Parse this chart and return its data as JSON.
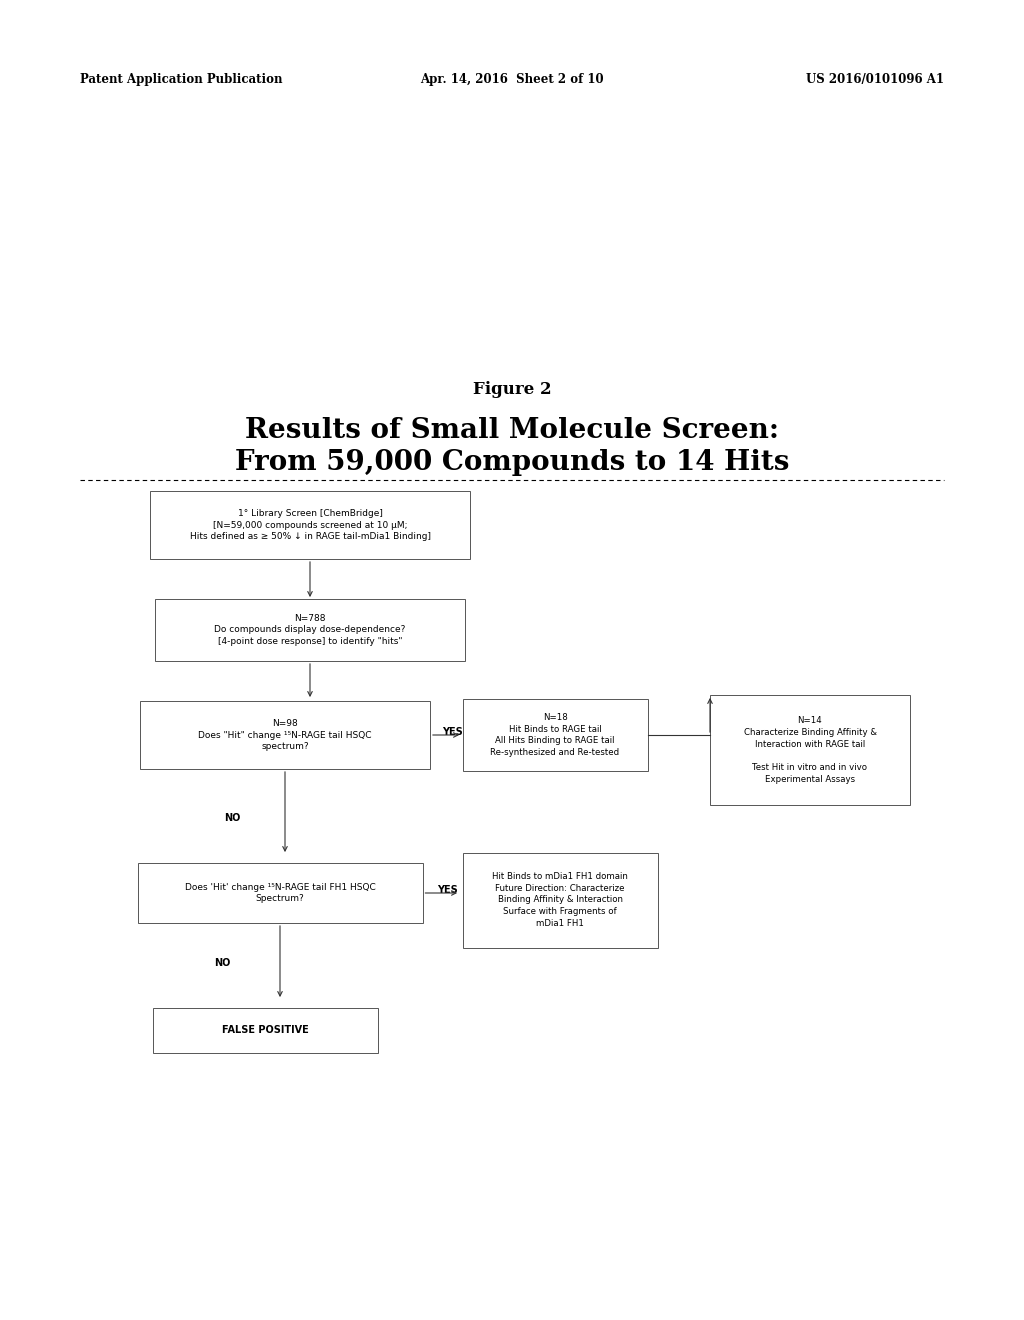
{
  "background_color": "#ffffff",
  "header_left": "Patent Application Publication",
  "header_center": "Apr. 14, 2016  Sheet 2 of 10",
  "header_right": "US 2016/0101096 A1",
  "figure_label": "Figure 2",
  "title_line1": "Results of Small Molecule Screen:",
  "title_line2": "From 59,000 Compounds to 14 Hits",
  "box1_text": "1° Library Screen [ChemBridge]\n[N=59,000 compounds screened at 10 µM;\nHits defined as ≥ 50% ↓ in RAGE tail-mDia1 Binding]",
  "box2_text": "N=788\nDo compounds display dose-dependence?\n[4-point dose response] to identify \"hits\"",
  "box3_text": "N=98\nDoes \"Hit\" change ¹⁵N-RAGE tail HSQC\nspectrum?",
  "box4_text": "N=18\nHit Binds to RAGE tail\nAll Hits Binding to RAGE tail\nRe-synthesized and Re-tested",
  "box5_text": "Does 'Hit' change ¹⁵N-RAGE tail FH1 HSQC\nSpectrum?",
  "box6_text": "Hit Binds to mDia1 FH1 domain\nFuture Direction: Characterize\nBinding Affinity & Interaction\nSurface with Fragments of\nmDia1 FH1",
  "box7_text": "FALSE POSITIVE",
  "box8_text": "N=14\nCharacterize Binding Affinity &\nInteraction with RAGE tail\n\nTest Hit in vitro and in vivo\nExperimental Assays"
}
